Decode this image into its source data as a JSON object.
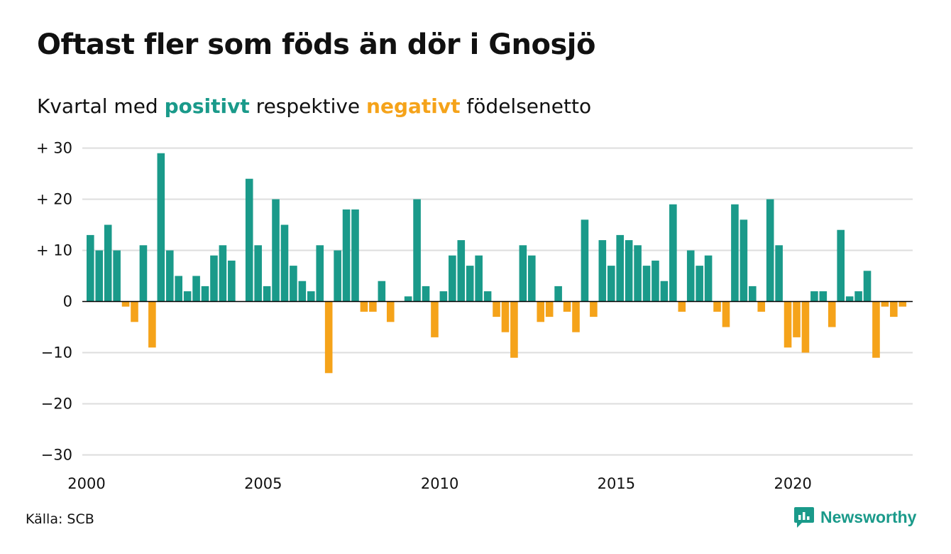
{
  "title": "Oftast fler som föds än dör i Gnosjö",
  "subtitle": {
    "prefix": "Kvartal med ",
    "positive_word": "positivt",
    "middle": " respektive ",
    "negative_word": "negativt",
    "suffix": " födelsenetto"
  },
  "source": "Källa: SCB",
  "brand": {
    "name": "Newsworthy",
    "icon": "newsworthy-chat-bars-icon"
  },
  "colors": {
    "positive": "#1a9a8a",
    "negative": "#f5a31a",
    "grid": "#dddddd",
    "text": "#111111"
  },
  "chart_data": {
    "type": "bar",
    "title": "Oftast fler som föds än dör i Gnosjö",
    "subtitle": "Kvartal med positivt respektive negativt födelsenetto",
    "x_start_year": 2000,
    "x_start_quarter": 1,
    "x_ticks": [
      2000,
      2005,
      2010,
      2015,
      2020
    ],
    "ylim": [
      -30,
      30
    ],
    "y_ticks": [
      {
        "value": 30,
        "label": "+ 30"
      },
      {
        "value": 20,
        "label": "+ 20"
      },
      {
        "value": 10,
        "label": "+ 10"
      },
      {
        "value": 0,
        "label": "0"
      },
      {
        "value": -10,
        "label": "−10"
      },
      {
        "value": -20,
        "label": "−20"
      },
      {
        "value": -30,
        "label": "−30"
      }
    ],
    "grid": true,
    "legend": "none",
    "values": [
      13,
      10,
      15,
      10,
      -1,
      -4,
      11,
      -9,
      29,
      10,
      5,
      2,
      5,
      3,
      9,
      11,
      8,
      0,
      24,
      11,
      3,
      20,
      15,
      7,
      4,
      2,
      11,
      -14,
      10,
      18,
      18,
      -2,
      -2,
      4,
      -4,
      0,
      1,
      20,
      3,
      -7,
      2,
      9,
      12,
      7,
      9,
      2,
      -3,
      -6,
      -11,
      11,
      9,
      -4,
      -3,
      3,
      -2,
      -6,
      16,
      -3,
      12,
      7,
      13,
      12,
      11,
      7,
      8,
      4,
      19,
      -2,
      10,
      7,
      9,
      -2,
      -5,
      19,
      16,
      3,
      -2,
      20,
      11,
      -9,
      -7,
      -10,
      2,
      2,
      -5,
      14,
      1,
      2,
      6,
      -11,
      -1,
      -3,
      -1
    ]
  }
}
